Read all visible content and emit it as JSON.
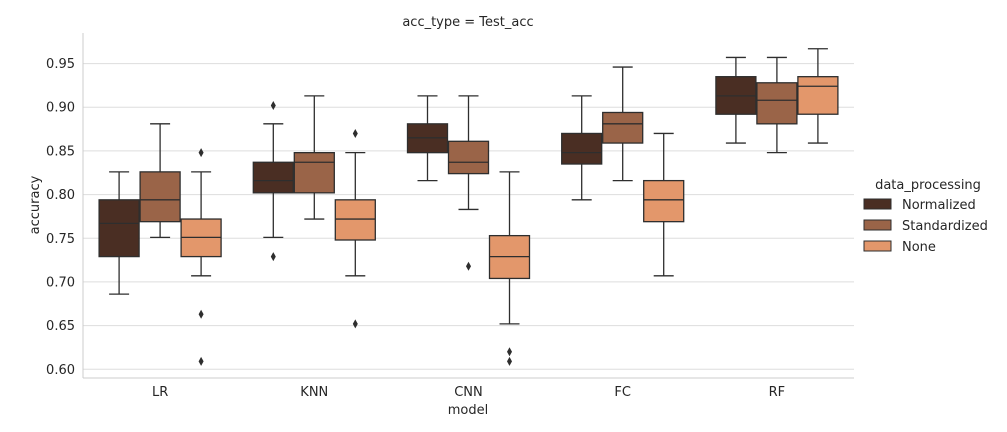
{
  "chart_data": {
    "type": "boxplot",
    "title": "acc_type = Test_acc",
    "xlabel": "model",
    "ylabel": "accuracy",
    "ylim": [
      0.59,
      0.985
    ],
    "yticks": [
      "0.60",
      "0.65",
      "0.70",
      "0.75",
      "0.80",
      "0.85",
      "0.90",
      "0.95"
    ],
    "ytick_values": [
      0.6,
      0.65,
      0.7,
      0.75,
      0.8,
      0.85,
      0.9,
      0.95
    ],
    "categories": [
      "LR",
      "KNN",
      "CNN",
      "FC",
      "RF"
    ],
    "grid": "horizontal",
    "legend": {
      "title": "data_processing",
      "placement": "right",
      "entries": [
        "Normalized",
        "Standardized",
        "None"
      ]
    },
    "series": [
      {
        "name": "Normalized",
        "color": "#4a2e23",
        "boxes": [
          {
            "whislo": 0.686,
            "q1": 0.729,
            "med": 0.767,
            "q3": 0.794,
            "whishi": 0.826,
            "fliers": []
          },
          {
            "whislo": 0.751,
            "q1": 0.802,
            "med": 0.816,
            "q3": 0.837,
            "whishi": 0.881,
            "fliers": [
              0.902,
              0.729
            ]
          },
          {
            "whislo": 0.816,
            "q1": 0.848,
            "med": 0.865,
            "q3": 0.881,
            "whishi": 0.913,
            "fliers": []
          },
          {
            "whislo": 0.794,
            "q1": 0.835,
            "med": 0.848,
            "q3": 0.87,
            "whishi": 0.913,
            "fliers": []
          },
          {
            "whislo": 0.859,
            "q1": 0.892,
            "med": 0.913,
            "q3": 0.935,
            "whishi": 0.957,
            "fliers": []
          }
        ]
      },
      {
        "name": "Standardized",
        "color": "#9a6448",
        "boxes": [
          {
            "whislo": 0.751,
            "q1": 0.769,
            "med": 0.794,
            "q3": 0.826,
            "whishi": 0.881,
            "fliers": []
          },
          {
            "whislo": 0.772,
            "q1": 0.802,
            "med": 0.837,
            "q3": 0.848,
            "whishi": 0.913,
            "fliers": []
          },
          {
            "whislo": 0.783,
            "q1": 0.824,
            "med": 0.837,
            "q3": 0.861,
            "whishi": 0.913,
            "fliers": [
              0.718
            ]
          },
          {
            "whislo": 0.816,
            "q1": 0.859,
            "med": 0.881,
            "q3": 0.894,
            "whishi": 0.946,
            "fliers": []
          },
          {
            "whislo": 0.848,
            "q1": 0.881,
            "med": 0.908,
            "q3": 0.928,
            "whishi": 0.957,
            "fliers": []
          }
        ]
      },
      {
        "name": "None",
        "color": "#e3976b",
        "boxes": [
          {
            "whislo": 0.707,
            "q1": 0.729,
            "med": 0.751,
            "q3": 0.772,
            "whishi": 0.826,
            "fliers": [
              0.848,
              0.663,
              0.609
            ]
          },
          {
            "whislo": 0.707,
            "q1": 0.748,
            "med": 0.772,
            "q3": 0.794,
            "whishi": 0.848,
            "fliers": [
              0.87,
              0.652
            ]
          },
          {
            "whislo": 0.652,
            "q1": 0.704,
            "med": 0.729,
            "q3": 0.753,
            "whishi": 0.826,
            "fliers": [
              0.62,
              0.609
            ]
          },
          {
            "whislo": 0.707,
            "q1": 0.769,
            "med": 0.794,
            "q3": 0.816,
            "whishi": 0.87,
            "fliers": []
          },
          {
            "whislo": 0.859,
            "q1": 0.892,
            "med": 0.924,
            "q3": 0.935,
            "whishi": 0.967,
            "fliers": []
          }
        ]
      }
    ]
  }
}
